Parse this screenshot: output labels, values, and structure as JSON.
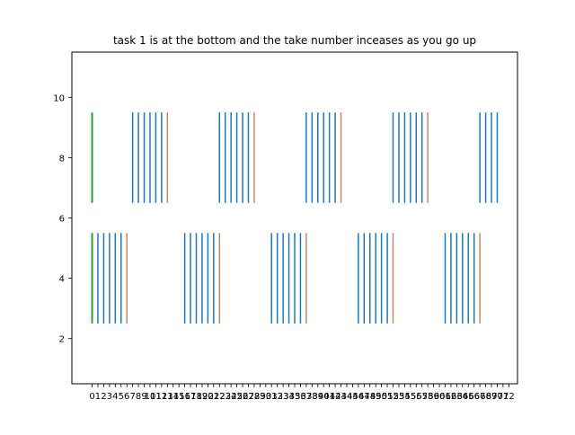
{
  "chart_data": {
    "type": "eventplot",
    "title": "task 1 is at the bottom and the take number inceases as you go up",
    "xlabel": "",
    "ylabel": "",
    "xlim": [
      -3.5,
      73.5
    ],
    "ylim": [
      0.5,
      11.5
    ],
    "xticks": [
      0,
      1,
      2,
      3,
      4,
      5,
      6,
      7,
      8,
      9,
      10,
      11,
      12,
      13,
      14,
      15,
      16,
      17,
      18,
      19,
      20,
      21,
      22,
      23,
      24,
      25,
      26,
      27,
      28,
      29,
      30,
      31,
      32,
      33,
      34,
      35,
      36,
      37,
      38,
      39,
      40,
      41,
      42,
      43,
      44,
      45,
      46,
      47,
      48,
      49,
      50,
      51,
      52,
      53,
      54,
      55,
      56,
      57,
      58,
      59,
      60,
      61,
      62,
      63,
      64,
      65,
      66,
      67,
      68,
      69,
      70,
      71,
      72
    ],
    "yticks": [
      2,
      4,
      6,
      8,
      10
    ],
    "grid": false,
    "colors": {
      "event": "#1f77b4",
      "end": "#c0896a",
      "start": "#2ca02c"
    },
    "series": [
      {
        "y_range": [
          2.5,
          5.5
        ],
        "start": [
          0
        ],
        "events": [
          1,
          2,
          3,
          4,
          5,
          16,
          17,
          18,
          19,
          20,
          21,
          31,
          32,
          33,
          34,
          35,
          36,
          46,
          47,
          48,
          49,
          50,
          51,
          61,
          62,
          63,
          64,
          65,
          66
        ],
        "end": [
          6,
          22,
          37,
          52,
          67
        ]
      },
      {
        "y_range": [
          6.5,
          9.5
        ],
        "start": [
          0
        ],
        "events": [
          7,
          8,
          9,
          10,
          11,
          12,
          22,
          23,
          24,
          25,
          26,
          27,
          37,
          38,
          39,
          40,
          41,
          42,
          52,
          53,
          54,
          55,
          56,
          57,
          67,
          68,
          69,
          70
        ],
        "end": [
          13,
          28,
          43,
          58
        ]
      }
    ]
  }
}
